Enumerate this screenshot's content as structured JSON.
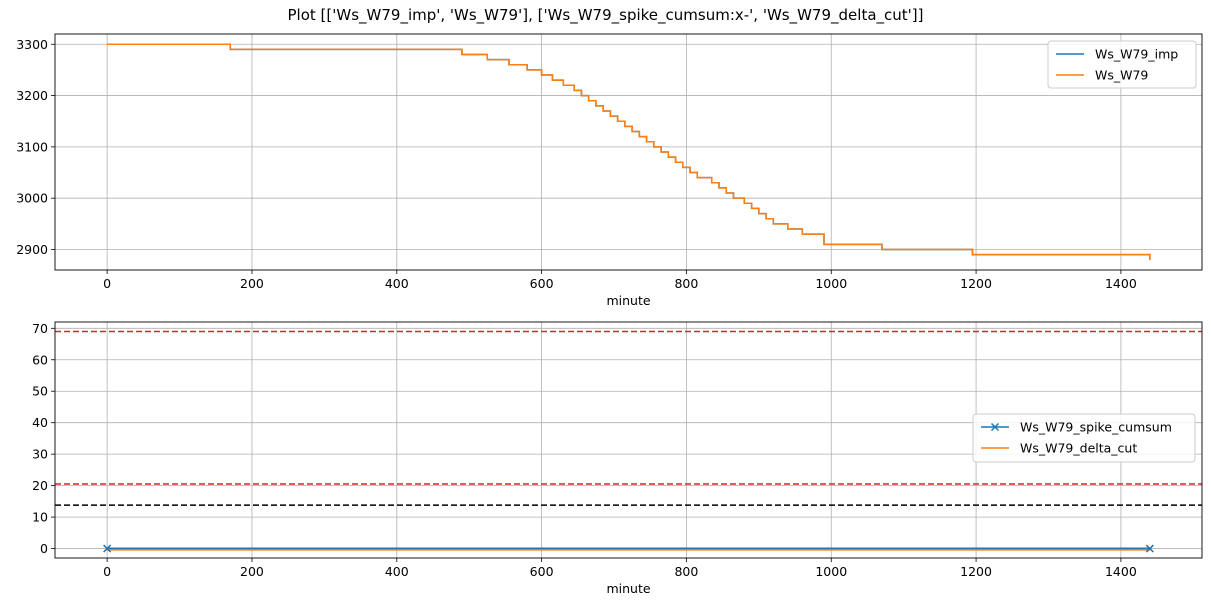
{
  "figure": {
    "title": "Plot [['Ws_W79_imp', 'Ws_W79'], ['Ws_W79_spike_cumsum:x-', 'Ws_W79_delta_cut']]"
  },
  "chart_data": [
    {
      "type": "line",
      "title": "",
      "xlabel": "minute",
      "ylabel": "",
      "xlim": [
        -72,
        1512
      ],
      "ylim": [
        2860,
        3320
      ],
      "xticks": [
        0,
        200,
        400,
        600,
        800,
        1000,
        1200,
        1400
      ],
      "yticks": [
        2900,
        3000,
        3100,
        3200,
        3300
      ],
      "grid": true,
      "legend_position": "upper right",
      "series": [
        {
          "name": "Ws_W79_imp",
          "color": "#1f77b4",
          "style": "solid",
          "step": true,
          "x": [
            0,
            155,
            170,
            490,
            525,
            555,
            580,
            600,
            615,
            630,
            645,
            655,
            665,
            675,
            685,
            695,
            705,
            715,
            725,
            735,
            745,
            755,
            765,
            775,
            785,
            795,
            805,
            815,
            835,
            845,
            855,
            865,
            880,
            890,
            900,
            910,
            920,
            940,
            960,
            990,
            1070,
            1195,
            1440
          ],
          "y": [
            3300,
            3300,
            3290,
            3280,
            3270,
            3260,
            3250,
            3240,
            3230,
            3220,
            3210,
            3200,
            3190,
            3180,
            3170,
            3160,
            3150,
            3140,
            3130,
            3120,
            3110,
            3100,
            3090,
            3080,
            3070,
            3060,
            3050,
            3040,
            3030,
            3020,
            3010,
            3000,
            2990,
            2980,
            2970,
            2960,
            2950,
            2940,
            2930,
            2910,
            2900,
            2890,
            2880
          ]
        },
        {
          "name": "Ws_W79",
          "color": "#ff7f0e",
          "style": "solid",
          "step": true,
          "x": [
            0,
            155,
            170,
            490,
            525,
            555,
            580,
            600,
            615,
            630,
            645,
            655,
            665,
            675,
            685,
            695,
            705,
            715,
            725,
            735,
            745,
            755,
            765,
            775,
            785,
            795,
            805,
            815,
            835,
            845,
            855,
            865,
            880,
            890,
            900,
            910,
            920,
            940,
            960,
            990,
            1070,
            1195,
            1440
          ],
          "y": [
            3300,
            3300,
            3290,
            3280,
            3270,
            3260,
            3250,
            3240,
            3230,
            3220,
            3210,
            3200,
            3190,
            3180,
            3170,
            3160,
            3150,
            3140,
            3130,
            3120,
            3110,
            3100,
            3090,
            3080,
            3070,
            3060,
            3050,
            3040,
            3030,
            3020,
            3010,
            3000,
            2990,
            2980,
            2970,
            2960,
            2950,
            2940,
            2930,
            2910,
            2900,
            2890,
            2880
          ]
        }
      ]
    },
    {
      "type": "line",
      "title": "",
      "xlabel": "minute",
      "ylabel": "",
      "xlim": [
        -72,
        1512
      ],
      "ylim": [
        -3,
        72
      ],
      "xticks": [
        0,
        200,
        400,
        600,
        800,
        1000,
        1200,
        1400
      ],
      "yticks": [
        0,
        10,
        20,
        30,
        40,
        50,
        60,
        70
      ],
      "grid": true,
      "legend_position": "center right",
      "series": [
        {
          "name": "Ws_W79_spike_cumsum",
          "color": "#1f77b4",
          "style": "solid",
          "marker": "x",
          "x": [
            0,
            1440
          ],
          "y": [
            0,
            0
          ]
        },
        {
          "name": "Ws_W79_delta_cut",
          "color": "#ff7f0e",
          "style": "solid",
          "x": [
            0,
            1440
          ],
          "y": [
            -0.4,
            -0.4
          ]
        }
      ],
      "hlines": [
        {
          "y": 69,
          "color": "#d62728",
          "style": "dashed"
        },
        {
          "y": 20.5,
          "color": "#d62728",
          "style": "dashed"
        },
        {
          "y": 13.8,
          "color": "#000000",
          "style": "dashed"
        }
      ]
    }
  ]
}
